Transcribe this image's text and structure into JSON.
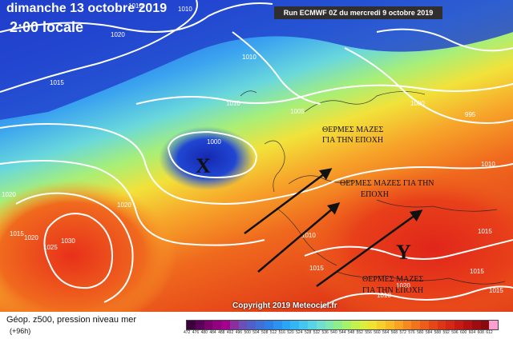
{
  "header": {
    "date": "dimanche 13 octobre 2019",
    "time": "2:00 locale",
    "run": "Run ECMWF 0Z du mercredi 9 octobre 2019"
  },
  "footer": {
    "copyright": "Copyright 2019 Meteociel.fr",
    "legend_title": "Géop. z500, pression niveau mer",
    "lead": "(+96h)"
  },
  "isobar_labels": [
    "1010",
    "1010",
    "1020",
    "1015",
    "1010",
    "1005",
    "1000",
    "995",
    "1010",
    "1000",
    "1020",
    "1020",
    "1015",
    "1030",
    "1020",
    "1025",
    "1015",
    "1010",
    "1015",
    "1020",
    "1015",
    "1015",
    "1010",
    "1010"
  ],
  "annotations": {
    "low": "Χ",
    "high": "Υ",
    "warm1_line1": "ΘΕΡΜΕΣ ΜΑΖΕΣ",
    "warm1_line2": "ΓΙΑ ΤΗΝ ΕΠΟΧΗ",
    "warm2_line1": "ΘΕΡΜΕΣ ΜΑΖΕΣ ΓΙΑ ΤΗΝ",
    "warm2_line2": "ΕΠΟΧΗ",
    "warm3_line1": "ΘΕΡΜΕΣ ΜΑΖΕΣ",
    "warm3_line2": "ΓΙΑ ΤΗΝ ΕΠΟΧΗ"
  },
  "scale": {
    "ticks": [
      "472",
      "476",
      "480",
      "484",
      "488",
      "492",
      "496",
      "500",
      "504",
      "508",
      "512",
      "516",
      "520",
      "524",
      "528",
      "532",
      "536",
      "540",
      "544",
      "548",
      "552",
      "556",
      "560",
      "564",
      "568",
      "572",
      "576",
      "580",
      "584",
      "588",
      "592",
      "596",
      "600",
      "604",
      "608",
      "612"
    ],
    "colors": [
      "#3d003d",
      "#5a005a",
      "#7a006e",
      "#92007f",
      "#a3008f",
      "#8a2fa0",
      "#6b4fb6",
      "#5060c8",
      "#3f70d8",
      "#2f80e6",
      "#2b92ef",
      "#2aa5f3",
      "#33b6f3",
      "#45c6ef",
      "#5bd3e6",
      "#70dfd0",
      "#7fe7b0",
      "#8eef8a",
      "#a6f26a",
      "#c3f24e",
      "#dcef3e",
      "#efe232",
      "#f7cf2c",
      "#f9ba27",
      "#f9a223",
      "#f68a20",
      "#f2731d",
      "#ec5c1b",
      "#e64719",
      "#df3517",
      "#d62615",
      "#c81a14",
      "#b51012",
      "#9e0b10",
      "#880a0e",
      "#ff9fd0"
    ]
  }
}
